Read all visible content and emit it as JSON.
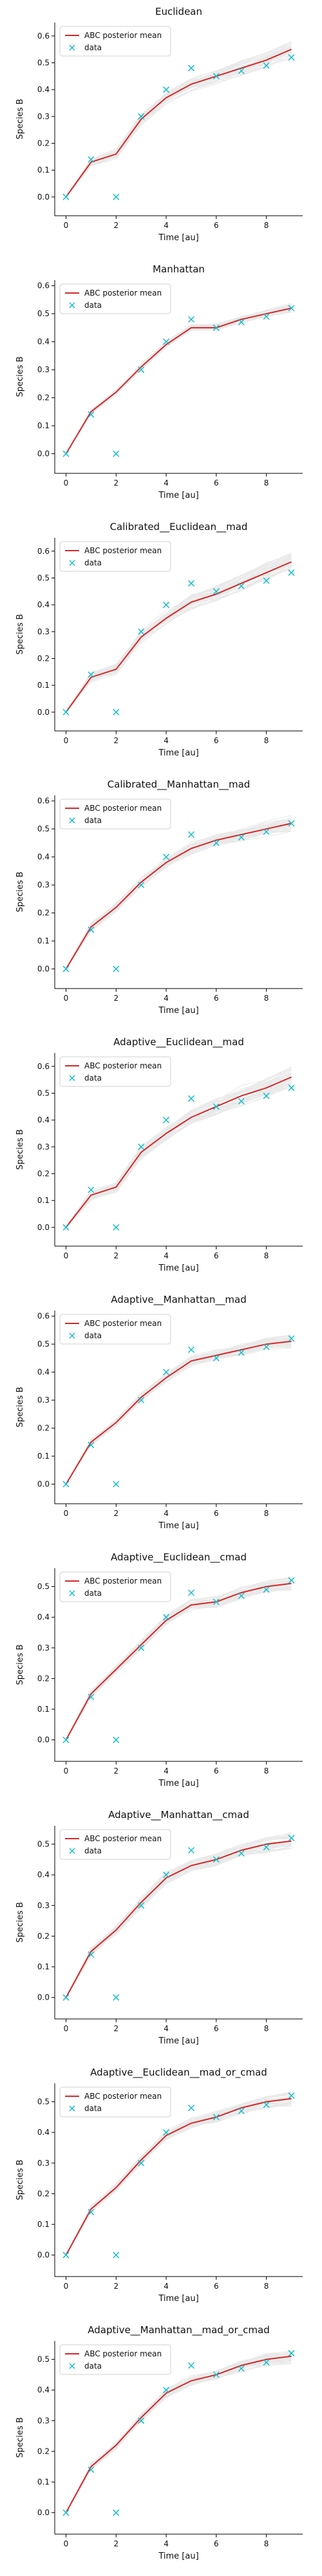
{
  "colors": {
    "mean_line": "#d62728",
    "data_marker": "#17becf",
    "sample_lines": "#8c8c8c",
    "axis": "#000000"
  },
  "legend": {
    "mean_label": "ABC posterior mean",
    "data_label": "data",
    "placement": "upper-left"
  },
  "chart_data": [
    {
      "type": "line",
      "title": "Euclidean",
      "xlabel": "Time [au]",
      "ylabel": "Species B",
      "xlim": [
        -0.45,
        9.45
      ],
      "ylim": [
        -0.07,
        0.65
      ],
      "xticks": [
        0,
        2,
        4,
        6,
        8
      ],
      "yticks": [
        0.0,
        0.1,
        0.2,
        0.3,
        0.4,
        0.5,
        0.6
      ],
      "series": [
        {
          "name": "ABC posterior mean",
          "x": [
            0,
            1,
            2,
            3,
            4,
            5,
            6,
            7,
            8,
            9
          ],
          "y": [
            0.0,
            0.13,
            0.16,
            0.29,
            0.37,
            0.42,
            0.45,
            0.48,
            0.51,
            0.55
          ]
        },
        {
          "name": "data",
          "x": [
            0,
            1,
            2,
            3,
            4,
            5,
            6,
            7,
            8,
            9
          ],
          "y": [
            0.0,
            0.14,
            0.0,
            0.3,
            0.4,
            0.48,
            0.45,
            0.47,
            0.49,
            0.52
          ]
        }
      ],
      "band": 0.03
    },
    {
      "type": "line",
      "title": "Manhattan",
      "xlabel": "Time [au]",
      "ylabel": "Species B",
      "xlim": [
        -0.45,
        9.45
      ],
      "ylim": [
        -0.07,
        0.62
      ],
      "xticks": [
        0,
        2,
        4,
        6,
        8
      ],
      "yticks": [
        0.0,
        0.1,
        0.2,
        0.3,
        0.4,
        0.5,
        0.6
      ],
      "series": [
        {
          "name": "ABC posterior mean",
          "x": [
            0,
            1,
            2,
            3,
            4,
            5,
            6,
            7,
            8,
            9
          ],
          "y": [
            0.0,
            0.15,
            0.22,
            0.31,
            0.39,
            0.45,
            0.45,
            0.48,
            0.5,
            0.52
          ]
        },
        {
          "name": "data",
          "x": [
            0,
            1,
            2,
            3,
            4,
            5,
            6,
            7,
            8,
            9
          ],
          "y": [
            0.0,
            0.14,
            0.0,
            0.3,
            0.4,
            0.48,
            0.45,
            0.47,
            0.49,
            0.52
          ]
        }
      ],
      "band": 0.015
    },
    {
      "type": "line",
      "title": "Calibrated__Euclidean__mad",
      "xlabel": "Time [au]",
      "ylabel": "Species B",
      "xlim": [
        -0.45,
        9.45
      ],
      "ylim": [
        -0.07,
        0.65
      ],
      "xticks": [
        0,
        2,
        4,
        6,
        8
      ],
      "yticks": [
        0.0,
        0.1,
        0.2,
        0.3,
        0.4,
        0.5,
        0.6
      ],
      "series": [
        {
          "name": "ABC posterior mean",
          "x": [
            0,
            1,
            2,
            3,
            4,
            5,
            6,
            7,
            8,
            9
          ],
          "y": [
            0.0,
            0.13,
            0.16,
            0.28,
            0.35,
            0.41,
            0.44,
            0.48,
            0.52,
            0.56
          ]
        },
        {
          "name": "data",
          "x": [
            0,
            1,
            2,
            3,
            4,
            5,
            6,
            7,
            8,
            9
          ],
          "y": [
            0.0,
            0.14,
            0.0,
            0.3,
            0.4,
            0.48,
            0.45,
            0.47,
            0.49,
            0.52
          ]
        }
      ],
      "band": 0.035
    },
    {
      "type": "line",
      "title": "Calibrated__Manhattan__mad",
      "xlabel": "Time [au]",
      "ylabel": "Species B",
      "xlim": [
        -0.45,
        9.45
      ],
      "ylim": [
        -0.07,
        0.62
      ],
      "xticks": [
        0,
        2,
        4,
        6,
        8
      ],
      "yticks": [
        0.0,
        0.1,
        0.2,
        0.3,
        0.4,
        0.5,
        0.6
      ],
      "series": [
        {
          "name": "ABC posterior mean",
          "x": [
            0,
            1,
            2,
            3,
            4,
            5,
            6,
            7,
            8,
            9
          ],
          "y": [
            0.0,
            0.15,
            0.22,
            0.31,
            0.38,
            0.43,
            0.46,
            0.48,
            0.5,
            0.52
          ]
        },
        {
          "name": "data",
          "x": [
            0,
            1,
            2,
            3,
            4,
            5,
            6,
            7,
            8,
            9
          ],
          "y": [
            0.0,
            0.14,
            0.0,
            0.3,
            0.4,
            0.48,
            0.45,
            0.47,
            0.49,
            0.52
          ]
        }
      ],
      "band": 0.025
    },
    {
      "type": "line",
      "title": "Adaptive__Euclidean__mad",
      "xlabel": "Time [au]",
      "ylabel": "Species B",
      "xlim": [
        -0.45,
        9.45
      ],
      "ylim": [
        -0.07,
        0.65
      ],
      "xticks": [
        0,
        2,
        4,
        6,
        8
      ],
      "yticks": [
        0.0,
        0.1,
        0.2,
        0.3,
        0.4,
        0.5,
        0.6
      ],
      "series": [
        {
          "name": "ABC posterior mean",
          "x": [
            0,
            1,
            2,
            3,
            4,
            5,
            6,
            7,
            8,
            9
          ],
          "y": [
            0.0,
            0.12,
            0.15,
            0.28,
            0.35,
            0.41,
            0.45,
            0.49,
            0.52,
            0.56
          ]
        },
        {
          "name": "data",
          "x": [
            0,
            1,
            2,
            3,
            4,
            5,
            6,
            7,
            8,
            9
          ],
          "y": [
            0.0,
            0.14,
            0.0,
            0.3,
            0.4,
            0.48,
            0.45,
            0.47,
            0.49,
            0.52
          ]
        }
      ],
      "band": 0.035
    },
    {
      "type": "line",
      "title": "Adaptive__Manhattan__mad",
      "xlabel": "Time [au]",
      "ylabel": "Species B",
      "xlim": [
        -0.45,
        9.45
      ],
      "ylim": [
        -0.07,
        0.62
      ],
      "xticks": [
        0,
        2,
        4,
        6,
        8
      ],
      "yticks": [
        0.0,
        0.1,
        0.2,
        0.3,
        0.4,
        0.5,
        0.6
      ],
      "series": [
        {
          "name": "ABC posterior mean",
          "x": [
            0,
            1,
            2,
            3,
            4,
            5,
            6,
            7,
            8,
            9
          ],
          "y": [
            0.0,
            0.15,
            0.22,
            0.31,
            0.38,
            0.44,
            0.46,
            0.48,
            0.5,
            0.51
          ]
        },
        {
          "name": "data",
          "x": [
            0,
            1,
            2,
            3,
            4,
            5,
            6,
            7,
            8,
            9
          ],
          "y": [
            0.0,
            0.14,
            0.0,
            0.3,
            0.4,
            0.48,
            0.45,
            0.47,
            0.49,
            0.52
          ]
        }
      ],
      "band": 0.02
    },
    {
      "type": "line",
      "title": "Adaptive__Euclidean__cmad",
      "xlabel": "Time [au]",
      "ylabel": "Species B",
      "xlim": [
        -0.45,
        9.45
      ],
      "ylim": [
        -0.07,
        0.56
      ],
      "xticks": [
        0,
        2,
        4,
        6,
        8
      ],
      "yticks": [
        0.0,
        0.1,
        0.2,
        0.3,
        0.4,
        0.5
      ],
      "series": [
        {
          "name": "ABC posterior mean",
          "x": [
            0,
            1,
            2,
            3,
            4,
            5,
            6,
            7,
            8,
            9
          ],
          "y": [
            0.0,
            0.15,
            0.23,
            0.31,
            0.39,
            0.44,
            0.45,
            0.48,
            0.5,
            0.51
          ]
        },
        {
          "name": "data",
          "x": [
            0,
            1,
            2,
            3,
            4,
            5,
            6,
            7,
            8,
            9
          ],
          "y": [
            0.0,
            0.14,
            0.0,
            0.3,
            0.4,
            0.48,
            0.45,
            0.47,
            0.49,
            0.52
          ]
        }
      ],
      "band": 0.02
    },
    {
      "type": "line",
      "title": "Adaptive__Manhattan__cmad",
      "xlabel": "Time [au]",
      "ylabel": "Species B",
      "xlim": [
        -0.45,
        9.45
      ],
      "ylim": [
        -0.07,
        0.56
      ],
      "xticks": [
        0,
        2,
        4,
        6,
        8
      ],
      "yticks": [
        0.0,
        0.1,
        0.2,
        0.3,
        0.4,
        0.5
      ],
      "series": [
        {
          "name": "ABC posterior mean",
          "x": [
            0,
            1,
            2,
            3,
            4,
            5,
            6,
            7,
            8,
            9
          ],
          "y": [
            0.0,
            0.15,
            0.22,
            0.31,
            0.39,
            0.43,
            0.45,
            0.48,
            0.5,
            0.51
          ]
        },
        {
          "name": "data",
          "x": [
            0,
            1,
            2,
            3,
            4,
            5,
            6,
            7,
            8,
            9
          ],
          "y": [
            0.0,
            0.14,
            0.0,
            0.3,
            0.4,
            0.48,
            0.45,
            0.47,
            0.49,
            0.52
          ]
        }
      ],
      "band": 0.025
    },
    {
      "type": "line",
      "title": "Adaptive__Euclidean__mad_or_cmad",
      "xlabel": "Time [au]",
      "ylabel": "Species B",
      "xlim": [
        -0.45,
        9.45
      ],
      "ylim": [
        -0.07,
        0.56
      ],
      "xticks": [
        0,
        2,
        4,
        6,
        8
      ],
      "yticks": [
        0.0,
        0.1,
        0.2,
        0.3,
        0.4,
        0.5
      ],
      "series": [
        {
          "name": "ABC posterior mean",
          "x": [
            0,
            1,
            2,
            3,
            4,
            5,
            6,
            7,
            8,
            9
          ],
          "y": [
            0.0,
            0.15,
            0.22,
            0.31,
            0.39,
            0.43,
            0.45,
            0.48,
            0.5,
            0.51
          ]
        },
        {
          "name": "data",
          "x": [
            0,
            1,
            2,
            3,
            4,
            5,
            6,
            7,
            8,
            9
          ],
          "y": [
            0.0,
            0.14,
            0.0,
            0.3,
            0.4,
            0.48,
            0.45,
            0.47,
            0.49,
            0.52
          ]
        }
      ],
      "band": 0.02
    },
    {
      "type": "line",
      "title": "Adaptive__Manhattan__mad_or_cmad",
      "xlabel": "Time [au]",
      "ylabel": "Species B",
      "xlim": [
        -0.45,
        9.45
      ],
      "ylim": [
        -0.07,
        0.56
      ],
      "xticks": [
        0,
        2,
        4,
        6,
        8
      ],
      "yticks": [
        0.0,
        0.1,
        0.2,
        0.3,
        0.4,
        0.5
      ],
      "series": [
        {
          "name": "ABC posterior mean",
          "x": [
            0,
            1,
            2,
            3,
            4,
            5,
            6,
            7,
            8,
            9
          ],
          "y": [
            0.0,
            0.15,
            0.22,
            0.31,
            0.39,
            0.43,
            0.45,
            0.48,
            0.5,
            0.51
          ]
        },
        {
          "name": "data",
          "x": [
            0,
            1,
            2,
            3,
            4,
            5,
            6,
            7,
            8,
            9
          ],
          "y": [
            0.0,
            0.14,
            0.0,
            0.3,
            0.4,
            0.48,
            0.45,
            0.47,
            0.49,
            0.52
          ]
        }
      ],
      "band": 0.02
    }
  ]
}
